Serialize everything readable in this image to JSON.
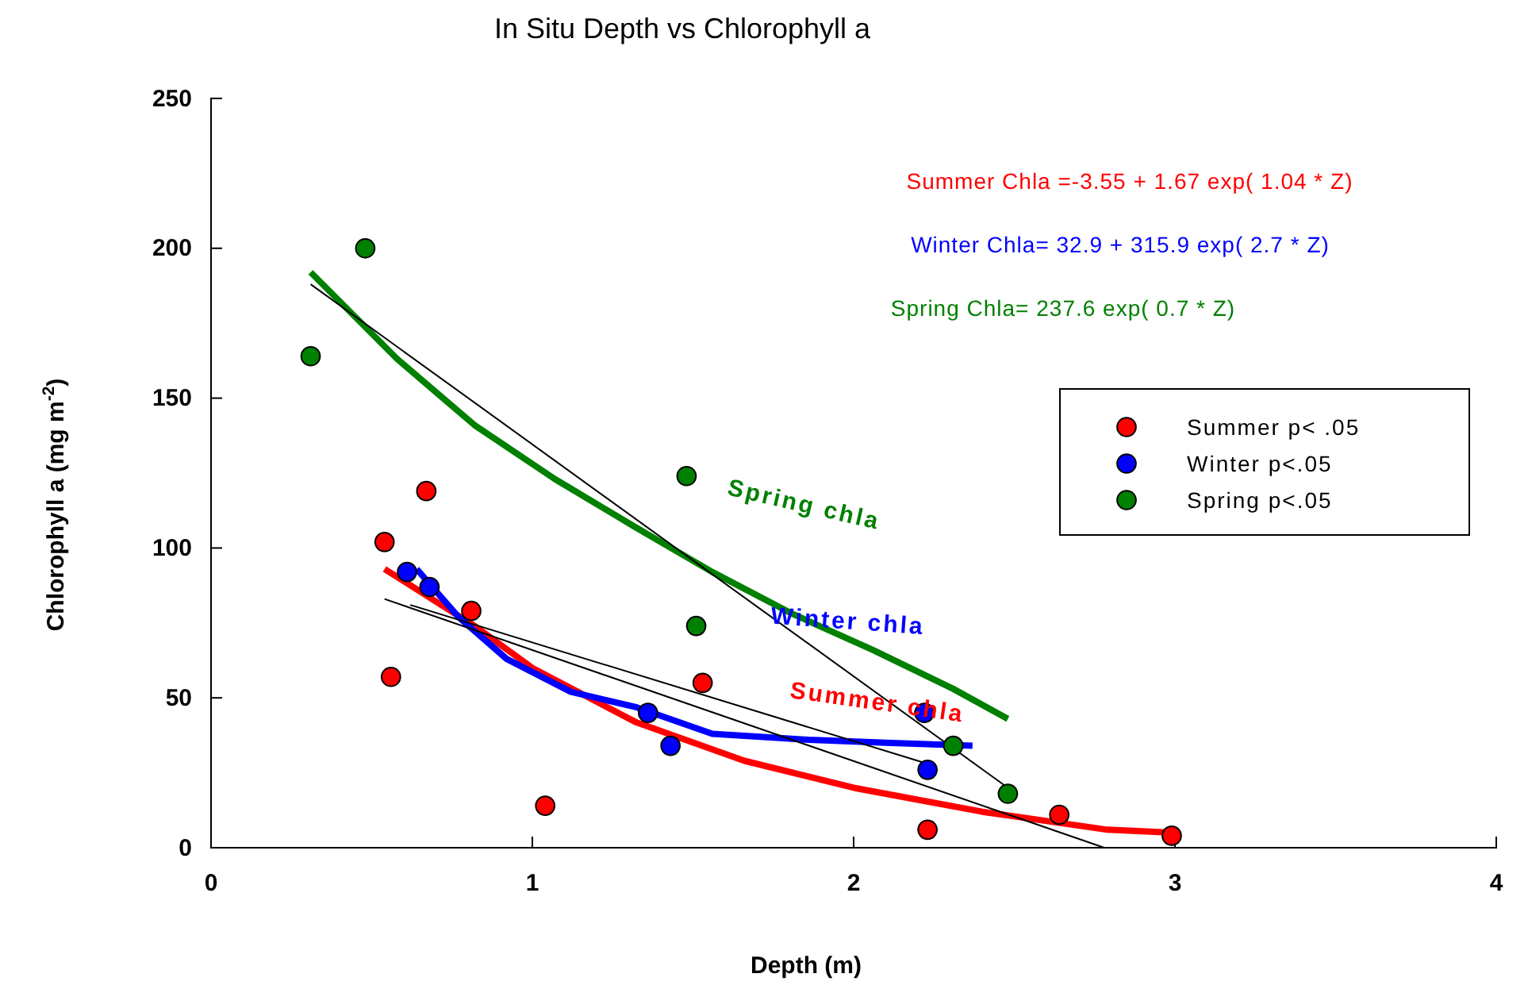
{
  "chart_data": {
    "type": "scatter",
    "title": "In Situ Depth vs Chlorophyll a",
    "xlabel": "Depth (m)",
    "ylabel": "Chlorophyll a (mg m$^{-2}$)",
    "xlim": [
      0,
      4
    ],
    "xticks": [
      0,
      1,
      2,
      3,
      4
    ],
    "ylim": [
      0,
      250
    ],
    "yticks": [
      0,
      50,
      100,
      150,
      200,
      250
    ],
    "grid": false,
    "legend": "top right",
    "marker": "circle",
    "series": [
      {
        "name": "Summer  p< .05",
        "color": "#ff0000",
        "x": [
          0.54,
          0.56,
          0.67,
          0.81,
          1.04,
          1.53,
          2.23,
          2.64,
          2.99
        ],
        "values": [
          102,
          57,
          119,
          79,
          14,
          55,
          6,
          11,
          4
        ]
      },
      {
        "name": "Winter p<.05",
        "color": "#0000ff",
        "x": [
          0.61,
          0.68,
          1.36,
          1.43,
          2.22,
          2.23
        ],
        "values": [
          92,
          87,
          45,
          34,
          45,
          26
        ]
      },
      {
        "name": "Spring p<.05",
        "color": "#008000",
        "x": [
          0.31,
          0.48,
          1.48,
          1.51,
          2.31,
          2.48
        ],
        "values": [
          164,
          200,
          124,
          74,
          34,
          18
        ]
      },
      {
        "type": "line",
        "color": "#ff0000",
        "marker": "none",
        "x": [
          0.54,
          0.82,
          1.0,
          1.32,
          1.66,
          2.0,
          2.4,
          2.79,
          2.99
        ],
        "values": [
          93,
          74,
          60,
          42,
          29,
          20,
          12,
          6,
          5
        ]
      },
      {
        "type": "line",
        "color": "#0000ff",
        "marker": "none",
        "x": [
          0.64,
          0.77,
          0.92,
          1.12,
          1.32,
          1.56,
          1.86,
          2.1,
          2.37
        ],
        "values": [
          93,
          77,
          63,
          52,
          47,
          38,
          36,
          35,
          34
        ]
      },
      {
        "type": "line",
        "color": "#008000",
        "marker": "none",
        "x": [
          0.31,
          0.58,
          0.82,
          1.07,
          1.32,
          1.56,
          1.81,
          2.06,
          2.31,
          2.48
        ],
        "values": [
          192,
          163,
          141,
          123,
          107,
          92,
          78,
          66,
          53,
          43
        ]
      },
      {
        "type": "line",
        "color": "#000000",
        "marker": "none",
        "x": [
          0.31,
          2.48
        ],
        "values": [
          188,
          20
        ]
      },
      {
        "type": "line",
        "color": "#000000",
        "marker": "none",
        "x": [
          0.62,
          2.23
        ],
        "values": [
          81,
          28
        ]
      },
      {
        "type": "line",
        "color": "#000000",
        "marker": "none",
        "x": [
          0.54,
          2.78
        ],
        "values": [
          83,
          0
        ]
      }
    ],
    "annotations": [
      "Summer Chla =-3.55 + 1.67 exp( 1.04 * Z)",
      "Winter Chla= 32.9 + 315.9 exp( 2.7 * Z)",
      "Spring Chla= 237.6 exp( 0.7 * Z)",
      "Spring chla",
      "Winter chla",
      "Summer chla"
    ]
  }
}
